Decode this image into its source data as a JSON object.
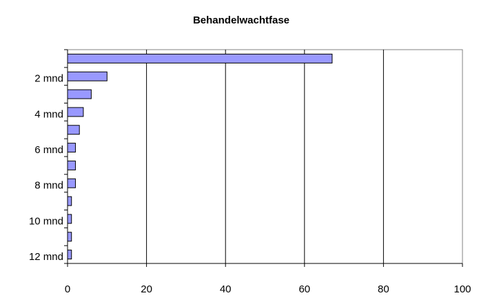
{
  "chart_data": {
    "type": "bar",
    "orientation": "horizontal",
    "title": "Behandelwachtfase",
    "categories": [
      null,
      "2 mnd",
      null,
      "4 mnd",
      null,
      "6 mnd",
      null,
      "8 mnd",
      null,
      "10 mnd",
      null,
      "12 mnd"
    ],
    "values": [
      67,
      10,
      6,
      4,
      3,
      2,
      2,
      2,
      1,
      1,
      1,
      1
    ],
    "color": "#9999ff",
    "xlim": [
      0,
      100
    ],
    "xticks": [
      0,
      20,
      40,
      60,
      80,
      100
    ],
    "grid": true
  }
}
